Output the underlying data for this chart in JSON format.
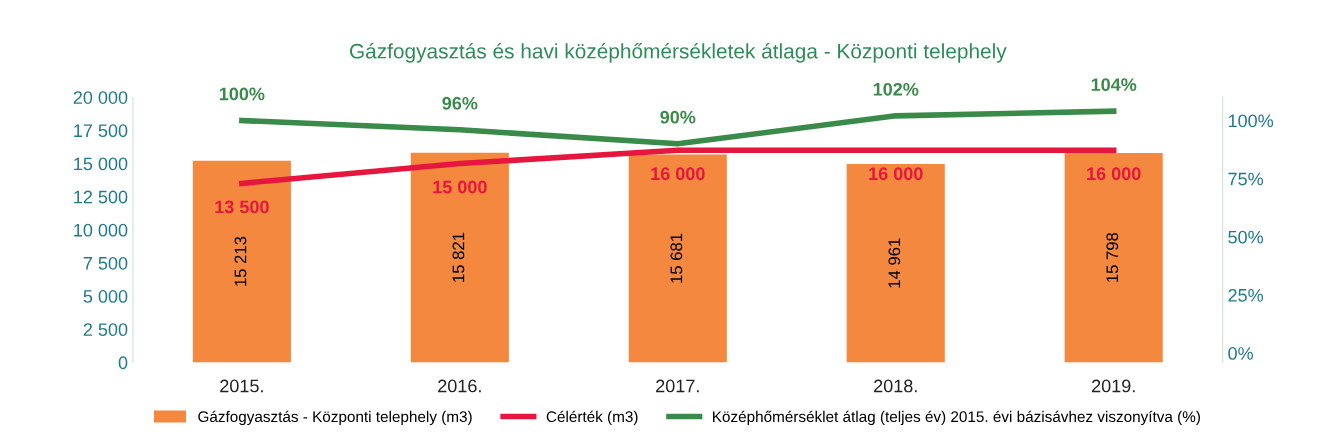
{
  "chart_data": {
    "type": "bar",
    "title": "Gázfogyasztás és havi középhőmérsékletek átlaga - Központi telephely",
    "categories": [
      "2015.",
      "2016.",
      "2017.",
      "2018.",
      "2019."
    ],
    "series": [
      {
        "name": "Gázfogyasztás - Központi telephely (m3)",
        "color": "#f5883f",
        "values": [
          15213,
          15821,
          15681,
          14961,
          15798
        ],
        "value_labels": [
          "15 213",
          "15 821",
          "15 681",
          "14 961",
          "15 798"
        ]
      },
      {
        "name": "Célérték (m3)",
        "type": "line",
        "color": "#e5173f",
        "values": [
          13500,
          15000,
          16000,
          16000,
          16000
        ],
        "value_labels": [
          "13 500",
          "15 000",
          "16 000",
          "16 000",
          "16 000"
        ]
      },
      {
        "name": "Középhőmérséklet átlag (teljes év) 2015. évi bázisávhez viszonyítva (%)",
        "type": "line",
        "axis": "y2",
        "color": "#3a8a4a",
        "values": [
          100,
          96,
          90,
          102,
          104
        ],
        "value_labels": [
          "100%",
          "96%",
          "90%",
          "102%",
          "104%"
        ]
      }
    ],
    "ylim": [
      0,
      20000
    ],
    "yticks": [
      0,
      {
        "value": 2500,
        "label": "2 500"
      },
      {
        "value": 5000,
        "label": "5 000"
      },
      {
        "value": 7500,
        "label": "7 500"
      },
      {
        "value": 10000,
        "label": "10 000"
      },
      {
        "value": 12500,
        "label": "12 500"
      },
      {
        "value": 15000,
        "label": "15 000"
      },
      {
        "value": 17500,
        "label": "17 500"
      },
      {
        "value": 20000,
        "label": "20 000"
      }
    ],
    "y2lim": [
      -4,
      110
    ],
    "y2ticks": [
      {
        "value": 0,
        "label": "0%"
      },
      {
        "value": 25,
        "label": "25%"
      },
      {
        "value": 50,
        "label": "50%"
      },
      {
        "value": 75,
        "label": "75%"
      },
      {
        "value": 100,
        "label": "100%"
      }
    ],
    "grid": false,
    "legend": "bottom"
  }
}
